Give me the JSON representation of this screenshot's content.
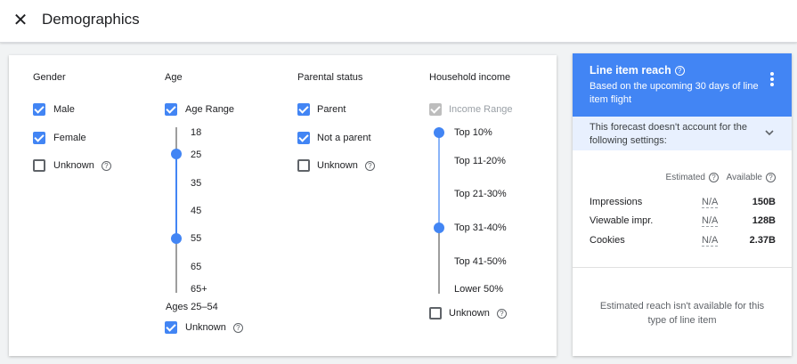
{
  "header": {
    "title": "Demographics",
    "close_icon": "close-icon"
  },
  "gender": {
    "title": "Gender",
    "options": [
      {
        "label": "Male",
        "checked": true
      },
      {
        "label": "Female",
        "checked": true
      },
      {
        "label": "Unknown",
        "checked": false
      }
    ]
  },
  "age": {
    "title": "Age",
    "range_label": "Age Range",
    "range_checked": true,
    "ticks": [
      "18",
      "25",
      "35",
      "45",
      "55",
      "65",
      "65+"
    ],
    "selected_from": "25",
    "selected_to": "55",
    "summary": "Ages 25–54",
    "unknown_label": "Unknown",
    "unknown_checked": true
  },
  "parental": {
    "title": "Parental status",
    "options": [
      {
        "label": "Parent",
        "checked": true
      },
      {
        "label": "Not a parent",
        "checked": true
      },
      {
        "label": "Unknown",
        "checked": false
      }
    ]
  },
  "income": {
    "title": "Household income",
    "range_label": "Income Range",
    "range_disabled": true,
    "ticks": [
      "Top 10%",
      "Top 11-20%",
      "Top 21-30%",
      "Top 31-40%",
      "Top 41-50%",
      "Lower 50%"
    ],
    "selected_from": "Top 10%",
    "selected_to": "Top 31-40%",
    "unknown_label": "Unknown",
    "unknown_checked": false
  },
  "reach": {
    "title": "Line item reach",
    "subtitle": "Based on the upcoming 30 days of line item flight",
    "warning": "This forecast doesn't account for the following settings:",
    "col_estimated": "Estimated",
    "col_available": "Available",
    "rows": [
      {
        "label": "Impressions",
        "estimated": "N/A",
        "available": "150B"
      },
      {
        "label": "Viewable impr.",
        "estimated": "N/A",
        "available": "128B"
      },
      {
        "label": "Cookies",
        "estimated": "N/A",
        "available": "2.37B"
      }
    ],
    "footer": "Estimated reach isn't available for this type of line item"
  },
  "colors": {
    "accent": "#4285f4",
    "warning_bg": "#e8f0fe"
  }
}
